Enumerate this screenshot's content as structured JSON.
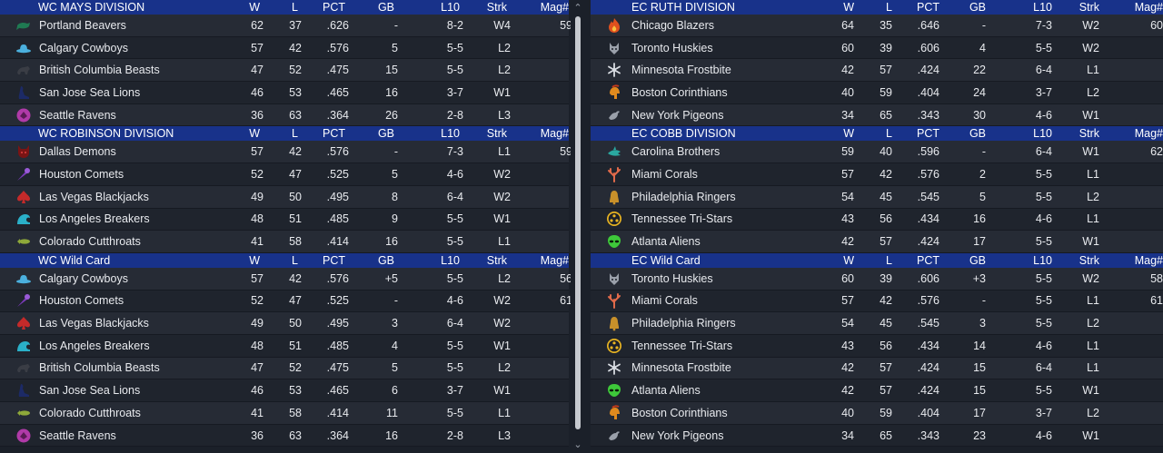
{
  "headers": {
    "w": "W",
    "l": "L",
    "pct": "PCT",
    "gb": "GB",
    "l10": "L10",
    "strk": "Strk",
    "mag": "Mag#"
  },
  "left": [
    {
      "title": "WC MAYS DIVISION",
      "rows": [
        {
          "logo": "beaver-icon",
          "color": "#1f7a52",
          "team": "Portland Beavers",
          "w": "62",
          "l": "37",
          "pct": ".626",
          "gb": "-",
          "l10": "8-2",
          "strk": "W4",
          "mag": "59"
        },
        {
          "logo": "cowboy-hat-icon",
          "color": "#4bb0de",
          "team": "Calgary Cowboys",
          "w": "57",
          "l": "42",
          "pct": ".576",
          "gb": "5",
          "l10": "5-5",
          "strk": "L2",
          "mag": ""
        },
        {
          "logo": "bear-icon",
          "color": "#3a3d45",
          "team": "British Columbia Beasts",
          "w": "47",
          "l": "52",
          "pct": ".475",
          "gb": "15",
          "l10": "5-5",
          "strk": "L2",
          "mag": ""
        },
        {
          "logo": "sea-lion-icon",
          "color": "#1c2a66",
          "team": "San Jose Sea Lions",
          "w": "46",
          "l": "53",
          "pct": ".465",
          "gb": "16",
          "l10": "3-7",
          "strk": "W1",
          "mag": ""
        },
        {
          "logo": "raven-icon",
          "color": "#b03aa8",
          "team": "Seattle Ravens",
          "w": "36",
          "l": "63",
          "pct": ".364",
          "gb": "26",
          "l10": "2-8",
          "strk": "L3",
          "mag": ""
        }
      ]
    },
    {
      "title": "WC ROBINSON DIVISION",
      "rows": [
        {
          "logo": "demon-icon",
          "color": "#7a1414",
          "team": "Dallas Demons",
          "w": "57",
          "l": "42",
          "pct": ".576",
          "gb": "-",
          "l10": "7-3",
          "strk": "L1",
          "mag": "59"
        },
        {
          "logo": "comet-icon",
          "color": "#2e2f3a",
          "team": "Houston Comets",
          "w": "52",
          "l": "47",
          "pct": ".525",
          "gb": "5",
          "l10": "4-6",
          "strk": "W2",
          "mag": ""
        },
        {
          "logo": "spade-icon",
          "color": "#c42a2a",
          "team": "Las Vegas Blackjacks",
          "w": "49",
          "l": "50",
          "pct": ".495",
          "gb": "8",
          "l10": "6-4",
          "strk": "W2",
          "mag": ""
        },
        {
          "logo": "wave-icon",
          "color": "#2ab0c8",
          "team": "Los Angeles Breakers",
          "w": "48",
          "l": "51",
          "pct": ".485",
          "gb": "9",
          "l10": "5-5",
          "strk": "W1",
          "mag": ""
        },
        {
          "logo": "fish-icon",
          "color": "#8ea83a",
          "team": "Colorado Cutthroats",
          "w": "41",
          "l": "58",
          "pct": ".414",
          "gb": "16",
          "l10": "5-5",
          "strk": "L1",
          "mag": ""
        }
      ]
    },
    {
      "title": "WC  Wild Card",
      "rows": [
        {
          "logo": "cowboy-hat-icon",
          "color": "#4bb0de",
          "team": "Calgary Cowboys",
          "w": "57",
          "l": "42",
          "pct": ".576",
          "gb": "+5",
          "l10": "5-5",
          "strk": "L2",
          "mag": "56"
        },
        {
          "logo": "comet-icon",
          "color": "#2e2f3a",
          "team": "Houston Comets",
          "w": "52",
          "l": "47",
          "pct": ".525",
          "gb": "-",
          "l10": "4-6",
          "strk": "W2",
          "mag": "61"
        },
        {
          "logo": "spade-icon",
          "color": "#c42a2a",
          "team": "Las Vegas Blackjacks",
          "w": "49",
          "l": "50",
          "pct": ".495",
          "gb": "3",
          "l10": "6-4",
          "strk": "W2",
          "mag": ""
        },
        {
          "logo": "wave-icon",
          "color": "#2ab0c8",
          "team": "Los Angeles Breakers",
          "w": "48",
          "l": "51",
          "pct": ".485",
          "gb": "4",
          "l10": "5-5",
          "strk": "W1",
          "mag": ""
        },
        {
          "logo": "bear-icon",
          "color": "#3a3d45",
          "team": "British Columbia Beasts",
          "w": "47",
          "l": "52",
          "pct": ".475",
          "gb": "5",
          "l10": "5-5",
          "strk": "L2",
          "mag": ""
        },
        {
          "logo": "sea-lion-icon",
          "color": "#1c2a66",
          "team": "San Jose Sea Lions",
          "w": "46",
          "l": "53",
          "pct": ".465",
          "gb": "6",
          "l10": "3-7",
          "strk": "W1",
          "mag": ""
        },
        {
          "logo": "fish-icon",
          "color": "#8ea83a",
          "team": "Colorado Cutthroats",
          "w": "41",
          "l": "58",
          "pct": ".414",
          "gb": "11",
          "l10": "5-5",
          "strk": "L1",
          "mag": ""
        },
        {
          "logo": "raven-icon",
          "color": "#b03aa8",
          "team": "Seattle Ravens",
          "w": "36",
          "l": "63",
          "pct": ".364",
          "gb": "16",
          "l10": "2-8",
          "strk": "L3",
          "mag": ""
        }
      ]
    }
  ],
  "right": [
    {
      "title": "EC RUTH DIVISION",
      "rows": [
        {
          "logo": "flame-icon",
          "color": "#e0501e",
          "team": "Chicago Blazers",
          "w": "64",
          "l": "35",
          "pct": ".646",
          "gb": "-",
          "l10": "7-3",
          "strk": "W2",
          "mag": "60"
        },
        {
          "logo": "husky-icon",
          "color": "#9aa0aa",
          "team": "Toronto Huskies",
          "w": "60",
          "l": "39",
          "pct": ".606",
          "gb": "4",
          "l10": "5-5",
          "strk": "W2",
          "mag": ""
        },
        {
          "logo": "snowflake-icon",
          "color": "#d8dce2",
          "team": "Minnesota Frostbite",
          "w": "42",
          "l": "57",
          "pct": ".424",
          "gb": "22",
          "l10": "6-4",
          "strk": "L1",
          "mag": ""
        },
        {
          "logo": "helmet-icon",
          "color": "#e08a1e",
          "team": "Boston Corinthians",
          "w": "40",
          "l": "59",
          "pct": ".404",
          "gb": "24",
          "l10": "3-7",
          "strk": "L2",
          "mag": ""
        },
        {
          "logo": "pigeon-icon",
          "color": "#9aa0aa",
          "team": "New York Pigeons",
          "w": "34",
          "l": "65",
          "pct": ".343",
          "gb": "30",
          "l10": "4-6",
          "strk": "W1",
          "mag": ""
        }
      ]
    },
    {
      "title": "EC COBB DIVISION",
      "rows": [
        {
          "logo": "shark-icon",
          "color": "#2aa8a0",
          "team": "Carolina Brothers",
          "w": "59",
          "l": "40",
          "pct": ".596",
          "gb": "-",
          "l10": "6-4",
          "strk": "W1",
          "mag": "62"
        },
        {
          "logo": "coral-icon",
          "color": "#e06a4a",
          "team": "Miami Corals",
          "w": "57",
          "l": "42",
          "pct": ".576",
          "gb": "2",
          "l10": "5-5",
          "strk": "L1",
          "mag": ""
        },
        {
          "logo": "bell-icon",
          "color": "#c8902a",
          "team": "Philadelphia Ringers",
          "w": "54",
          "l": "45",
          "pct": ".545",
          "gb": "5",
          "l10": "5-5",
          "strk": "L2",
          "mag": ""
        },
        {
          "logo": "tri-star-icon",
          "color": "#e8b422",
          "team": "Tennessee Tri-Stars",
          "w": "43",
          "l": "56",
          "pct": ".434",
          "gb": "16",
          "l10": "4-6",
          "strk": "L1",
          "mag": ""
        },
        {
          "logo": "alien-icon",
          "color": "#3ec83a",
          "team": "Atlanta Aliens",
          "w": "42",
          "l": "57",
          "pct": ".424",
          "gb": "17",
          "l10": "5-5",
          "strk": "W1",
          "mag": ""
        }
      ]
    },
    {
      "title": "EC  Wild Card",
      "rows": [
        {
          "logo": "husky-icon",
          "color": "#9aa0aa",
          "team": "Toronto Huskies",
          "w": "60",
          "l": "39",
          "pct": ".606",
          "gb": "+3",
          "l10": "5-5",
          "strk": "W2",
          "mag": "58"
        },
        {
          "logo": "coral-icon",
          "color": "#e06a4a",
          "team": "Miami Corals",
          "w": "57",
          "l": "42",
          "pct": ".576",
          "gb": "-",
          "l10": "5-5",
          "strk": "L1",
          "mag": "61"
        },
        {
          "logo": "bell-icon",
          "color": "#c8902a",
          "team": "Philadelphia Ringers",
          "w": "54",
          "l": "45",
          "pct": ".545",
          "gb": "3",
          "l10": "5-5",
          "strk": "L2",
          "mag": ""
        },
        {
          "logo": "tri-star-icon",
          "color": "#e8b422",
          "team": "Tennessee Tri-Stars",
          "w": "43",
          "l": "56",
          "pct": ".434",
          "gb": "14",
          "l10": "4-6",
          "strk": "L1",
          "mag": ""
        },
        {
          "logo": "snowflake-icon",
          "color": "#d8dce2",
          "team": "Minnesota Frostbite",
          "w": "42",
          "l": "57",
          "pct": ".424",
          "gb": "15",
          "l10": "6-4",
          "strk": "L1",
          "mag": ""
        },
        {
          "logo": "alien-icon",
          "color": "#3ec83a",
          "team": "Atlanta Aliens",
          "w": "42",
          "l": "57",
          "pct": ".424",
          "gb": "15",
          "l10": "5-5",
          "strk": "W1",
          "mag": ""
        },
        {
          "logo": "helmet-icon",
          "color": "#e08a1e",
          "team": "Boston Corinthians",
          "w": "40",
          "l": "59",
          "pct": ".404",
          "gb": "17",
          "l10": "3-7",
          "strk": "L2",
          "mag": ""
        },
        {
          "logo": "pigeon-icon",
          "color": "#9aa0aa",
          "team": "New York Pigeons",
          "w": "34",
          "l": "65",
          "pct": ".343",
          "gb": "23",
          "l10": "4-6",
          "strk": "W1",
          "mag": ""
        }
      ]
    }
  ]
}
